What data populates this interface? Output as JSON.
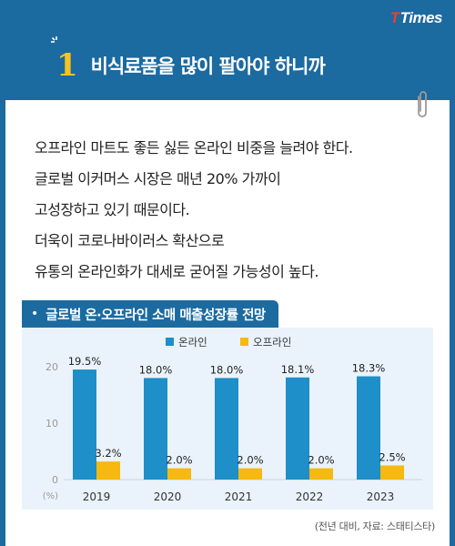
{
  "brand": {
    "logo_t": "T",
    "logo_rest": "Times"
  },
  "header": {
    "number": "1",
    "title": "비식료품을 많이 팔아야 하니까"
  },
  "body_lines": [
    "오프라인 마트도 좋든 싫든 온라인 비중을 늘려야 한다.",
    "글로벌 이커머스 시장은 매년 20% 가까이",
    "고성장하고 있기 때문이다.",
    "더욱이 코로나바이러스 확산으로",
    "유통의 온라인화가 대세로 굳어질 가능성이 높다."
  ],
  "chart_heading": {
    "bullet": "•",
    "text": "글로벌 온·오프라인 소매 매출성장률 전망"
  },
  "source_note": "(전년 대비, 자료: 스태티스타)",
  "chart_data": {
    "type": "bar",
    "title": "글로벌 온·오프라인 소매 매출성장률 전망",
    "categories": [
      "2019",
      "2020",
      "2021",
      "2022",
      "2023"
    ],
    "series": [
      {
        "name": "온라인",
        "values": [
          19.5,
          18.0,
          18.0,
          18.1,
          18.3
        ],
        "labels": [
          "19.5%",
          "18.0%",
          "18.0%",
          "18.1%",
          "18.3%"
        ],
        "color": "#1e8fc8"
      },
      {
        "name": "오프라인",
        "values": [
          3.2,
          2.0,
          2.0,
          2.0,
          2.5
        ],
        "labels": [
          "3.2%",
          "2.0%",
          "2.0%",
          "2.0%",
          "2.5%"
        ],
        "color": "#f5b90f"
      }
    ],
    "ylim": [
      0,
      20
    ],
    "yticks": [
      "0",
      "10",
      "20"
    ],
    "yunit": "(%)",
    "legend_placement": "top-center",
    "grid": false
  },
  "colors": {
    "brand_blue": "#1b6aa0",
    "accent_yellow": "#f6c322",
    "panel": "#eaf3fb",
    "logo_red": "#e8412c"
  }
}
